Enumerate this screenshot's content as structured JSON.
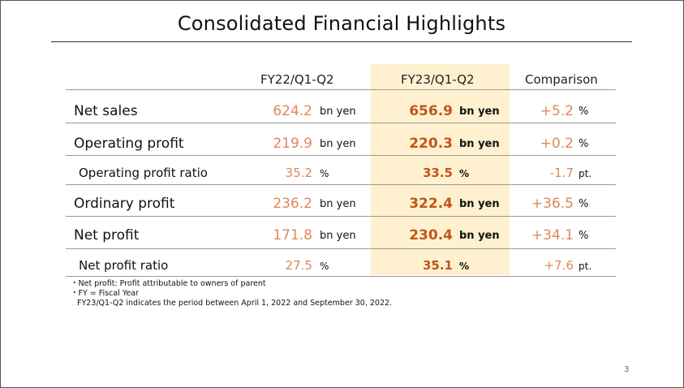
{
  "title": "Consolidated Financial Highlights",
  "columns": {
    "prev": "FY22/Q1-Q2",
    "cur": "FY23/Q1-Q2",
    "cmp": "Comparison"
  },
  "rows": [
    {
      "label": "Net sales",
      "prev": "624.2",
      "prev_unit": "bn yen",
      "cur": "656.9",
      "cur_unit": "bn yen",
      "cmp": "+5.2",
      "cmp_unit": "%"
    },
    {
      "label": "Operating profit",
      "prev": "219.9",
      "prev_unit": "bn yen",
      "cur": "220.3",
      "cur_unit": "bn yen",
      "cmp": "+0.2",
      "cmp_unit": "%"
    },
    {
      "label": "Operating profit ratio",
      "prev": "35.2",
      "prev_unit": "%",
      "cur": "33.5",
      "cur_unit": "%",
      "cmp": "-1.7",
      "cmp_unit": "pt."
    },
    {
      "label": "Ordinary profit",
      "prev": "236.2",
      "prev_unit": "bn yen",
      "cur": "322.4",
      "cur_unit": "bn yen",
      "cmp": "+36.5",
      "cmp_unit": "%"
    },
    {
      "label": "Net profit",
      "prev": "171.8",
      "prev_unit": "bn yen",
      "cur": "230.4",
      "cur_unit": "bn yen",
      "cmp": "+34.1",
      "cmp_unit": "%"
    },
    {
      "label": "Net profit ratio",
      "prev": "27.5",
      "prev_unit": "%",
      "cur": "35.1",
      "cur_unit": "%",
      "cmp": "+7.6",
      "cmp_unit": "pt."
    }
  ],
  "notes": [
    "・Net profit: Profit attributable to owners of parent",
    "・FY = Fiscal Year",
    "FY23/Q1-Q2 indicates the period between April 1, 2022 and September 30, 2022."
  ],
  "page_number": "3",
  "colors": {
    "highlight": "#fff1cf",
    "value_orange": "#e0875a",
    "value_bold": "#c0561d"
  }
}
